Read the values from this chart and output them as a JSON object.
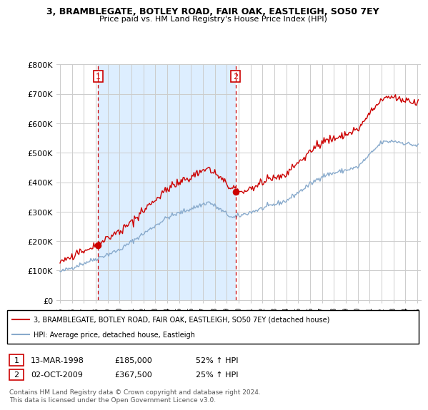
{
  "title": "3, BRAMBLEGATE, BOTLEY ROAD, FAIR OAK, EASTLEIGH, SO50 7EY",
  "subtitle": "Price paid vs. HM Land Registry's House Price Index (HPI)",
  "legend_line1": "3, BRAMBLEGATE, BOTLEY ROAD, FAIR OAK, EASTLEIGH, SO50 7EY (detached house)",
  "legend_line2": "HPI: Average price, detached house, Eastleigh",
  "footer": "Contains HM Land Registry data © Crown copyright and database right 2024.\nThis data is licensed under the Open Government Licence v3.0.",
  "sale1_date": "13-MAR-1998",
  "sale1_price": "£185,000",
  "sale1_pct": "52% ↑ HPI",
  "sale1_year": 1998.2,
  "sale1_value": 185000,
  "sale2_date": "02-OCT-2009",
  "sale2_price": "£367,500",
  "sale2_pct": "25% ↑ HPI",
  "sale2_year": 2009.75,
  "sale2_value": 367500,
  "price_color": "#cc0000",
  "hpi_color": "#88aacc",
  "shade_color": "#ddeeff",
  "vline_color": "#cc0000",
  "dot_color": "#cc0000",
  "grid_color": "#cccccc",
  "ylim": [
    0,
    800000
  ],
  "yticks": [
    0,
    100000,
    200000,
    300000,
    400000,
    500000,
    600000,
    700000,
    800000
  ],
  "ytick_labels": [
    "£0",
    "£100K",
    "£200K",
    "£300K",
    "£400K",
    "£500K",
    "£600K",
    "£700K",
    "£800K"
  ],
  "xlim_start": 1994.7,
  "xlim_end": 2025.3
}
